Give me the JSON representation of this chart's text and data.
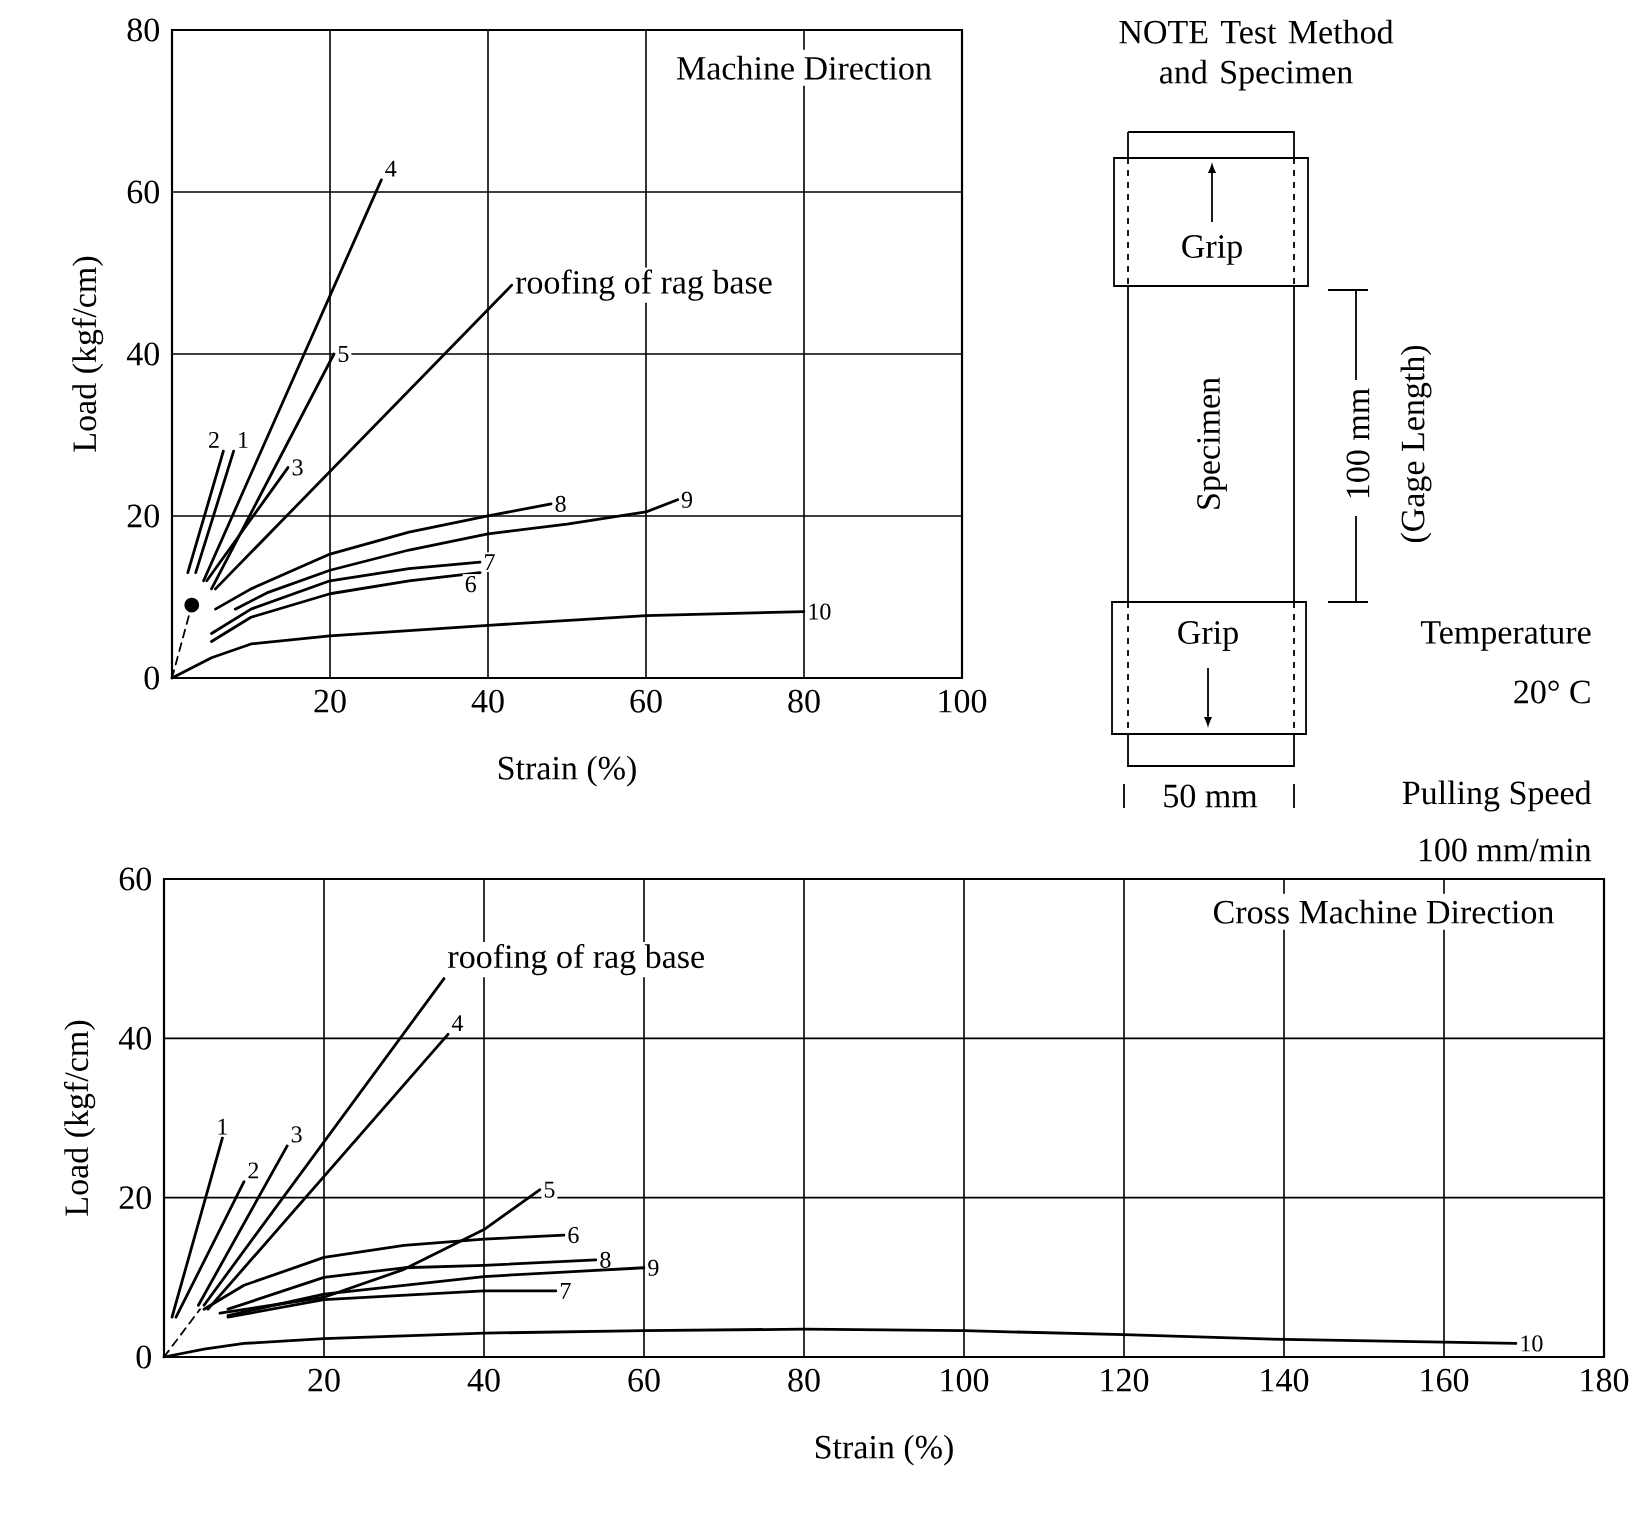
{
  "chart_data": [
    {
      "type": "line",
      "xlabel": "Strain (%)",
      "ylabel": "Load (kgf/cm)",
      "xlim": [
        0,
        100
      ],
      "ylim": [
        0,
        80
      ],
      "xticks": [
        20,
        40,
        60,
        80,
        100
      ],
      "yticks": [
        0,
        20,
        40,
        60,
        80
      ],
      "grid": true,
      "annotations": [
        "Machine Direction"
      ],
      "series": [
        {
          "name": "1",
          "color": "#000000",
          "x": [
            3,
            7.8
          ],
          "values": [
            13,
            28
          ]
        },
        {
          "name": "2",
          "color": "#000000",
          "x": [
            2,
            6.5
          ],
          "values": [
            13,
            28
          ]
        },
        {
          "name": "3",
          "color": "#000000",
          "x": [
            4.4,
            14.7
          ],
          "values": [
            12,
            26
          ]
        },
        {
          "name": "4",
          "color": "#000000",
          "x": [
            4,
            26.5
          ],
          "values": [
            12,
            61.5
          ]
        },
        {
          "name": "5",
          "color": "#000000",
          "x": [
            5,
            20.5
          ],
          "values": [
            11,
            40
          ]
        },
        {
          "name": "roofing of rag base",
          "color": "#000000",
          "x": [
            5.5,
            43
          ],
          "values": [
            11,
            48.5
          ]
        },
        {
          "name": "6",
          "color": "#000000",
          "x": [
            5,
            10,
            20,
            30,
            39
          ],
          "values": [
            4.5,
            7.5,
            10.4,
            12,
            13
          ]
        },
        {
          "name": "7",
          "color": "#000000",
          "x": [
            5,
            10,
            20,
            30,
            39
          ],
          "values": [
            5.5,
            8.5,
            12,
            13.5,
            14.3
          ]
        },
        {
          "name": "8",
          "color": "#000000",
          "x": [
            5.5,
            10,
            20,
            30,
            40,
            48
          ],
          "values": [
            8.5,
            11,
            15.3,
            18,
            20,
            21.5
          ]
        },
        {
          "name": "9",
          "color": "#000000",
          "x": [
            8,
            12,
            20,
            30,
            40,
            50,
            60,
            64
          ],
          "values": [
            8.5,
            10.5,
            13.3,
            15.8,
            17.8,
            19,
            20.5,
            22
          ]
        },
        {
          "name": "10",
          "color": "#000000",
          "x": [
            0,
            5,
            10,
            20,
            40,
            60,
            80
          ],
          "values": [
            0,
            2.5,
            4.2,
            5.2,
            6.5,
            7.7,
            8.2
          ]
        },
        {
          "color": "#000000",
          "x": [
            0,
            2.5
          ],
          "values": [
            0,
            9
          ],
          "line_style": "dashed"
        },
        {
          "type": "scatter",
          "marker": "circle",
          "color": "#000000",
          "x": [
            2.5
          ],
          "values": [
            9
          ]
        }
      ]
    },
    {
      "type": "line",
      "xlabel": "Strain (%)",
      "ylabel": "Load (kgf/cm)",
      "xlim": [
        0,
        180
      ],
      "ylim": [
        0,
        60
      ],
      "xticks": [
        20,
        40,
        60,
        80,
        100,
        120,
        140,
        160,
        180
      ],
      "yticks": [
        0,
        20,
        40,
        60
      ],
      "grid": true,
      "annotations": [
        "Cross Machine Direction"
      ],
      "series": [
        {
          "name": "1",
          "color": "#000000",
          "x": [
            1,
            7.3
          ],
          "values": [
            5,
            27.5
          ]
        },
        {
          "name": "2",
          "color": "#000000",
          "x": [
            1.5,
            10
          ],
          "values": [
            5,
            22
          ]
        },
        {
          "name": "3",
          "color": "#000000",
          "x": [
            4.3,
            15.4
          ],
          "values": [
            6.5,
            26.5
          ]
        },
        {
          "name": "4",
          "color": "#000000",
          "x": [
            5.5,
            35.5
          ],
          "values": [
            6,
            40.5
          ]
        },
        {
          "name": "5",
          "color": "#000000",
          "x": [
            7,
            20,
            30,
            40,
            47
          ],
          "values": [
            5.5,
            7.5,
            11,
            16,
            21
          ]
        },
        {
          "name": "roofing of rag base",
          "color": "#000000",
          "x": [
            5,
            35
          ],
          "values": [
            6.5,
            47.5
          ]
        },
        {
          "name": "6",
          "color": "#000000",
          "x": [
            5,
            10,
            20,
            30,
            40,
            50
          ],
          "values": [
            6,
            9,
            12.5,
            14,
            14.8,
            15.3
          ]
        },
        {
          "name": "7",
          "color": "#000000",
          "x": [
            8,
            20,
            40,
            49
          ],
          "values": [
            5,
            7.2,
            8.3,
            8.3
          ]
        },
        {
          "name": "8",
          "color": "#000000",
          "x": [
            8,
            20,
            30,
            40,
            54
          ],
          "values": [
            6,
            10,
            11.2,
            11.5,
            12.2
          ]
        },
        {
          "name": "9",
          "color": "#000000",
          "x": [
            8,
            20,
            40,
            60
          ],
          "values": [
            5.2,
            7.9,
            10.1,
            11.2
          ]
        },
        {
          "name": "10",
          "color": "#000000",
          "x": [
            0,
            5,
            10,
            20,
            40,
            60,
            80,
            100,
            120,
            140,
            169
          ],
          "values": [
            0,
            1,
            1.7,
            2.3,
            3,
            3.3,
            3.5,
            3.3,
            2.8,
            2.2,
            1.7
          ]
        },
        {
          "color": "#000000",
          "x": [
            0,
            4.5
          ],
          "values": [
            0,
            6
          ],
          "line_style": "dashed"
        }
      ]
    },
    {
      "type": "other",
      "title": "NOTE Test Method and Specimen",
      "annotations": [
        "Grip",
        "Grip",
        "Specimen",
        "100 mm",
        "(Gage Length)",
        "Temperature",
        "20° C",
        "50 mm",
        "Pulling Speed",
        "100 mm/min"
      ]
    }
  ]
}
